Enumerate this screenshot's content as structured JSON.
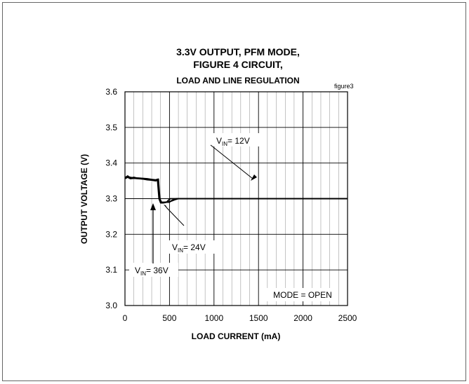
{
  "chart_data": {
    "type": "line",
    "title_lines": [
      "3.3V OUTPUT, PFM MODE,",
      "FIGURE 4 CIRCUIT,",
      "LOAD AND LINE REGULATION"
    ],
    "figure_tag": "figure3",
    "xlabel": "LOAD CURRENT (mA)",
    "ylabel": "OUTPUT  VOLTAGE  (V)",
    "xlim": [
      0,
      2500
    ],
    "ylim": [
      3.0,
      3.6
    ],
    "x_ticks": [
      "0",
      "500",
      "1000",
      "1500",
      "2000",
      "2500"
    ],
    "y_ticks": [
      "3.0",
      "3.1",
      "3.2",
      "3.3",
      "3.4",
      "3.5",
      "3.6"
    ],
    "grid": true,
    "series": [
      {
        "x": [
          0,
          30,
          60,
          100,
          150,
          200,
          250,
          300,
          345,
          375,
          392,
          410,
          440,
          470,
          500,
          520,
          550,
          580,
          610,
          650,
          700,
          1000,
          1500,
          2000,
          2500
        ],
        "y": [
          3.36,
          3.362,
          3.36,
          3.358,
          3.358,
          3.357,
          3.356,
          3.354,
          3.353,
          3.355,
          3.3,
          3.29,
          3.29,
          3.29,
          3.29,
          3.294,
          3.298,
          3.3,
          3.3,
          3.3,
          3.3,
          3.3,
          3.3,
          3.3,
          3.3
        ]
      },
      {
        "x": [
          0,
          30,
          60,
          100,
          150,
          200,
          250,
          300,
          345,
          365,
          382,
          400,
          430,
          470,
          500,
          530,
          560,
          600,
          700,
          2500
        ],
        "y": [
          3.358,
          3.364,
          3.358,
          3.36,
          3.357,
          3.355,
          3.353,
          3.352,
          3.35,
          3.352,
          3.3,
          3.288,
          3.288,
          3.29,
          3.292,
          3.294,
          3.297,
          3.3,
          3.3,
          3.3
        ]
      },
      {
        "x": [
          0,
          30,
          60,
          100,
          150,
          200,
          250,
          300,
          345,
          370,
          388,
          410,
          440,
          470,
          490,
          510,
          550,
          620,
          2500
        ],
        "y": [
          3.356,
          3.36,
          3.356,
          3.357,
          3.356,
          3.355,
          3.354,
          3.352,
          3.351,
          3.353,
          3.3,
          3.29,
          3.29,
          3.291,
          3.296,
          3.3,
          3.3,
          3.3,
          3.3
        ]
      }
    ],
    "annotations": [
      {
        "main": "V",
        "sub": "IN",
        "rest": "= 12V",
        "text": "VIN = 12V"
      },
      {
        "main": "V",
        "sub": "IN",
        "rest": "= 24V",
        "text": "VIN = 24V"
      },
      {
        "main": "V",
        "sub": "IN",
        "rest": "= 36V",
        "text": "VIN = 36V"
      }
    ],
    "mode_label": "MODE = OPEN"
  }
}
